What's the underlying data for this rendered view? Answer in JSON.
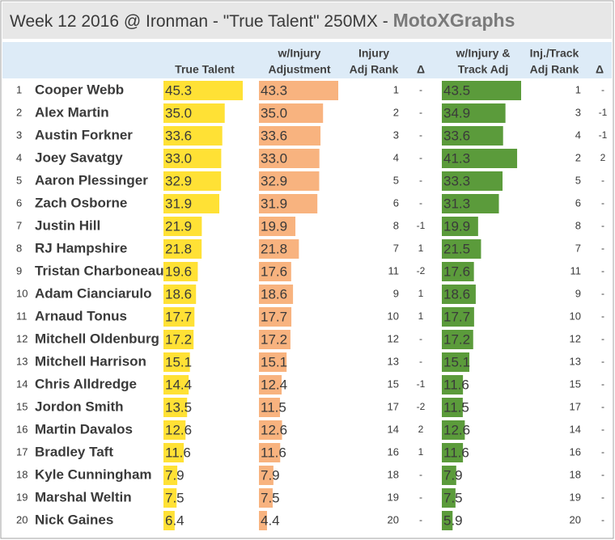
{
  "title": "Week 12 2016 @ Ironman - \"True Talent\" 250MX - ",
  "brand": "MotoXGraphs",
  "table": {
    "headers": [
      [],
      [],
      [
        "True Talent"
      ],
      [
        "w/Injury",
        "Adjustment"
      ],
      [
        "Injury",
        "Adj Rank"
      ],
      [
        "Δ"
      ],
      [
        "w/Injury &",
        "Track Adj"
      ],
      [
        "Inj./Track",
        "Adj Rank"
      ],
      [
        "Δ"
      ]
    ],
    "rows": [
      [
        1,
        "Cooper Webb",
        "45.3",
        "43.3",
        1,
        "-",
        "43.5",
        1,
        "-"
      ],
      [
        2,
        "Alex Martin",
        "35.0",
        "35.0",
        2,
        "-",
        "34.9",
        3,
        "-1"
      ],
      [
        3,
        "Austin Forkner",
        "33.6",
        "33.6",
        3,
        "-",
        "33.6",
        4,
        "-1"
      ],
      [
        4,
        "Joey Savatgy",
        "33.0",
        "33.0",
        4,
        "-",
        "41.3",
        2,
        "2"
      ],
      [
        5,
        "Aaron Plessinger",
        "32.9",
        "32.9",
        5,
        "-",
        "33.3",
        5,
        "-"
      ],
      [
        6,
        "Zach Osborne",
        "31.9",
        "31.9",
        6,
        "-",
        "31.3",
        6,
        "-"
      ],
      [
        7,
        "Justin Hill",
        "21.9",
        "19.9",
        8,
        "-1",
        "19.9",
        8,
        "-"
      ],
      [
        8,
        "RJ Hampshire",
        "21.8",
        "21.8",
        7,
        "1",
        "21.5",
        7,
        "-"
      ],
      [
        9,
        "Tristan Charboneau",
        "19.6",
        "17.6",
        11,
        "-2",
        "17.6",
        11,
        "-"
      ],
      [
        10,
        "Adam Cianciarulo",
        "18.6",
        "18.6",
        9,
        "1",
        "18.6",
        9,
        "-"
      ],
      [
        11,
        "Arnaud Tonus",
        "17.7",
        "17.7",
        10,
        "1",
        "17.7",
        10,
        "-"
      ],
      [
        12,
        "Mitchell Oldenburg",
        "17.2",
        "17.2",
        12,
        "-",
        "17.2",
        12,
        "-"
      ],
      [
        13,
        "Mitchell Harrison",
        "15.1",
        "15.1",
        13,
        "-",
        "15.1",
        13,
        "-"
      ],
      [
        14,
        "Chris Alldredge",
        "14.4",
        "12.4",
        15,
        "-1",
        "11.6",
        15,
        "-"
      ],
      [
        15,
        "Jordon Smith",
        "13.5",
        "11.5",
        17,
        "-2",
        "11.5",
        17,
        "-"
      ],
      [
        16,
        "Martin Davalos",
        "12.6",
        "12.6",
        14,
        "2",
        "12.6",
        14,
        "-"
      ],
      [
        17,
        "Bradley Taft",
        "11.6",
        "11.6",
        16,
        "1",
        "11.6",
        16,
        "-"
      ],
      [
        18,
        "Kyle Cunningham",
        "7.9",
        "7.9",
        18,
        "-",
        "7.9",
        18,
        "-"
      ],
      [
        19,
        "Marshal Weltin",
        "7.5",
        "7.5",
        19,
        "-",
        "7.5",
        19,
        "-"
      ],
      [
        20,
        "Nick Gaines",
        "6.4",
        "4.4",
        20,
        "-",
        "5.9",
        20,
        "-"
      ]
    ]
  }
}
